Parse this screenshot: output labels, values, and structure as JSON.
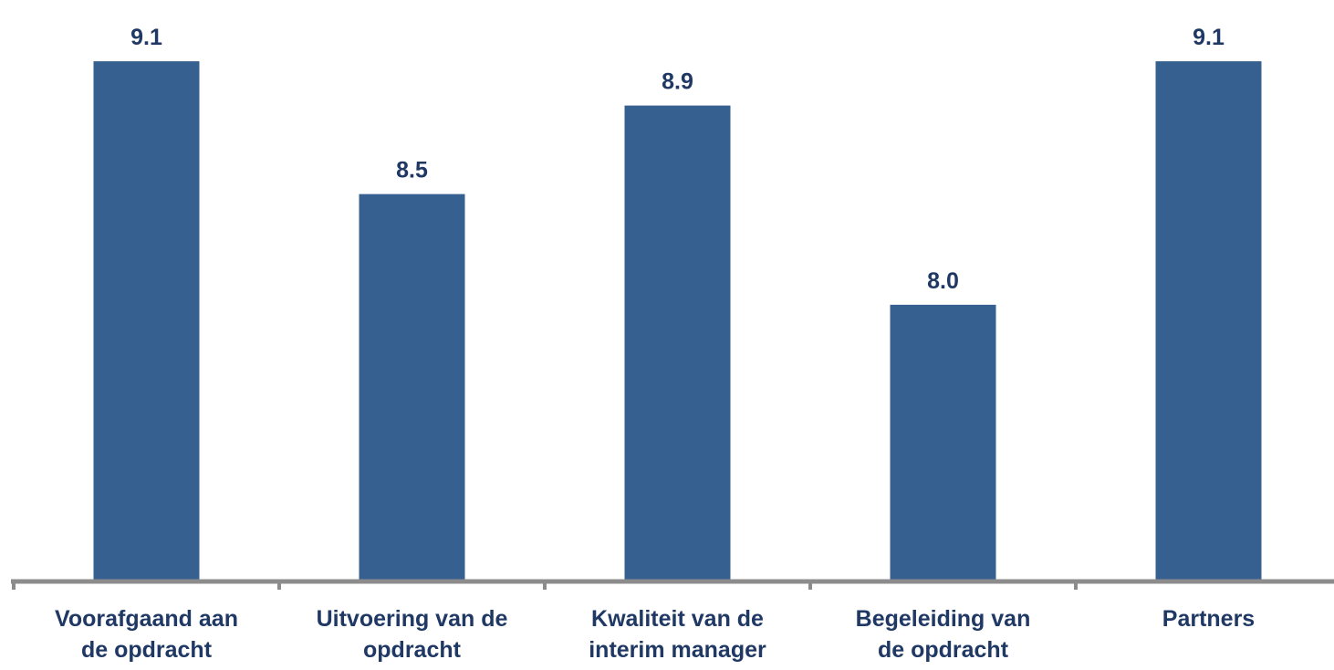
{
  "chart_data": {
    "type": "bar",
    "categories": [
      [
        "Voorafgaand aan",
        "de opdracht"
      ],
      [
        "Uitvoering van de",
        "opdracht"
      ],
      [
        "Kwaliteit van de",
        "interim manager"
      ],
      [
        "Begeleiding van",
        "de opdracht"
      ],
      [
        "Partners"
      ]
    ],
    "values": [
      9.1,
      8.5,
      8.9,
      8.0,
      9.1
    ],
    "value_labels": [
      "9.1",
      "8.5",
      "8.9",
      "8.0",
      "9.1"
    ],
    "title": "",
    "xlabel": "",
    "ylabel": "",
    "ylim": [
      6.75,
      9.15
    ],
    "grid": false,
    "colors": {
      "bar": "#36608F",
      "label": "#1F3864",
      "axis": "#8C8C8C"
    }
  }
}
